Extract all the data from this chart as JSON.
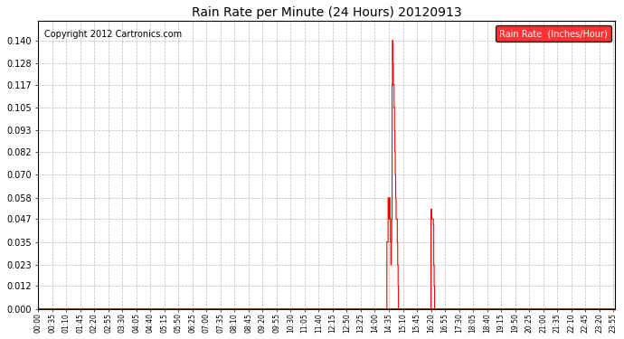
{
  "title": "Rain Rate per Minute (24 Hours) 20120913",
  "copyright": "Copyright 2012 Cartronics.com",
  "legend_label": "Rain Rate  (Inches/Hour)",
  "legend_bg": "#ff0000",
  "legend_text_color": "#ffffff",
  "line_color": "#ff0000",
  "bg_color": "#ffffff",
  "grid_color": "#bbbbbb",
  "ylim": [
    0.0,
    0.15
  ],
  "yticks": [
    0.0,
    0.012,
    0.023,
    0.035,
    0.047,
    0.058,
    0.07,
    0.082,
    0.093,
    0.105,
    0.117,
    0.128,
    0.14
  ],
  "x_labels": [
    "00:00",
    "00:35",
    "01:10",
    "01:45",
    "02:20",
    "02:55",
    "03:30",
    "04:05",
    "04:40",
    "05:15",
    "05:50",
    "06:25",
    "07:00",
    "07:35",
    "08:10",
    "08:45",
    "09:20",
    "09:55",
    "10:30",
    "11:05",
    "11:40",
    "12:15",
    "12:50",
    "13:25",
    "14:00",
    "14:35",
    "15:10",
    "15:45",
    "16:20",
    "16:55",
    "17:30",
    "18:05",
    "18:40",
    "19:15",
    "19:50",
    "20:25",
    "21:00",
    "21:35",
    "22:10",
    "22:45",
    "23:20",
    "23:55"
  ],
  "rain_data": [
    {
      "t": 870,
      "v": 0.035
    },
    {
      "t": 871,
      "v": 0.035
    },
    {
      "t": 872,
      "v": 0.035
    },
    {
      "t": 873,
      "v": 0.058
    },
    {
      "t": 874,
      "v": 0.047
    },
    {
      "t": 875,
      "v": 0.047
    },
    {
      "t": 876,
      "v": 0.058
    },
    {
      "t": 877,
      "v": 0.058
    },
    {
      "t": 878,
      "v": 0.047
    },
    {
      "t": 879,
      "v": 0.035
    },
    {
      "t": 880,
      "v": 0.023
    },
    {
      "t": 881,
      "v": 0.035
    },
    {
      "t": 882,
      "v": 0.047
    },
    {
      "t": 883,
      "v": 0.117
    },
    {
      "t": 884,
      "v": 0.14
    },
    {
      "t": 885,
      "v": 0.128
    },
    {
      "t": 886,
      "v": 0.117
    },
    {
      "t": 887,
      "v": 0.117
    },
    {
      "t": 888,
      "v": 0.105
    },
    {
      "t": 889,
      "v": 0.093
    },
    {
      "t": 890,
      "v": 0.082
    },
    {
      "t": 891,
      "v": 0.07
    },
    {
      "t": 892,
      "v": 0.058
    },
    {
      "t": 893,
      "v": 0.047
    },
    {
      "t": 894,
      "v": 0.047
    },
    {
      "t": 895,
      "v": 0.047
    },
    {
      "t": 896,
      "v": 0.035
    },
    {
      "t": 897,
      "v": 0.023
    },
    {
      "t": 898,
      "v": 0.012
    },
    {
      "t": 899,
      "v": 0.0
    },
    {
      "t": 980,
      "v": 0.052
    },
    {
      "t": 981,
      "v": 0.052
    },
    {
      "t": 982,
      "v": 0.047
    },
    {
      "t": 983,
      "v": 0.047
    },
    {
      "t": 984,
      "v": 0.047
    },
    {
      "t": 985,
      "v": 0.047
    },
    {
      "t": 986,
      "v": 0.044
    },
    {
      "t": 987,
      "v": 0.023
    },
    {
      "t": 988,
      "v": 0.012
    },
    {
      "t": 989,
      "v": 0.0
    }
  ],
  "total_minutes": 1440
}
